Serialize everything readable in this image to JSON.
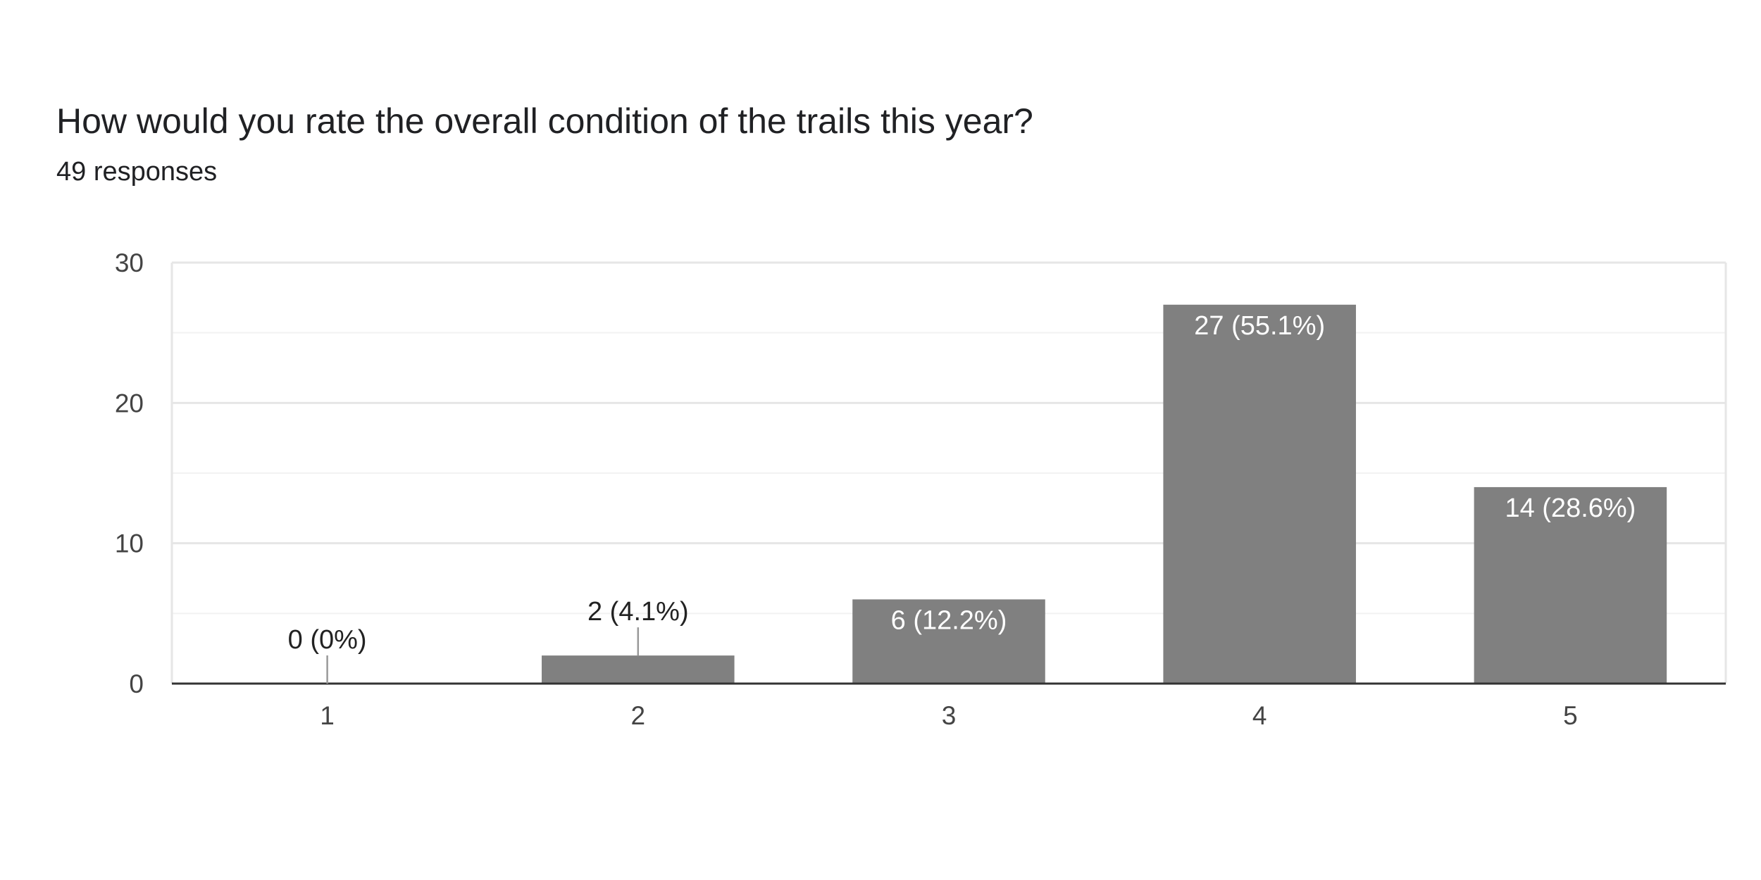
{
  "question": {
    "title": "How would you rate the overall condition of the trails this year?",
    "responses": "49 responses"
  },
  "colors": {
    "bar": "#808080",
    "grid_major": "#e6e6e6",
    "grid_minor": "#f2f2f2",
    "axis": "#333333",
    "label_inside": "#ffffff",
    "label_outside": "#222222",
    "leader": "#999999"
  },
  "chart_data": {
    "type": "bar",
    "title": "How would you rate the overall condition of the trails this year?",
    "xlabel": "",
    "ylabel": "",
    "categories": [
      "1",
      "2",
      "3",
      "4",
      "5"
    ],
    "values": [
      0,
      2,
      6,
      27,
      14
    ],
    "data_labels": [
      "0 (0%)",
      "2 (4.1%)",
      "6 (12.2%)",
      "27 (55.1%)",
      "14 (28.6%)"
    ],
    "ylim": [
      0,
      30
    ],
    "yticks": [
      0,
      10,
      20,
      30
    ],
    "yticks_labels": [
      "0",
      "10",
      "20",
      "30"
    ],
    "minor_gridlines": [
      5,
      15,
      25
    ],
    "grid": true,
    "legend": "none"
  }
}
